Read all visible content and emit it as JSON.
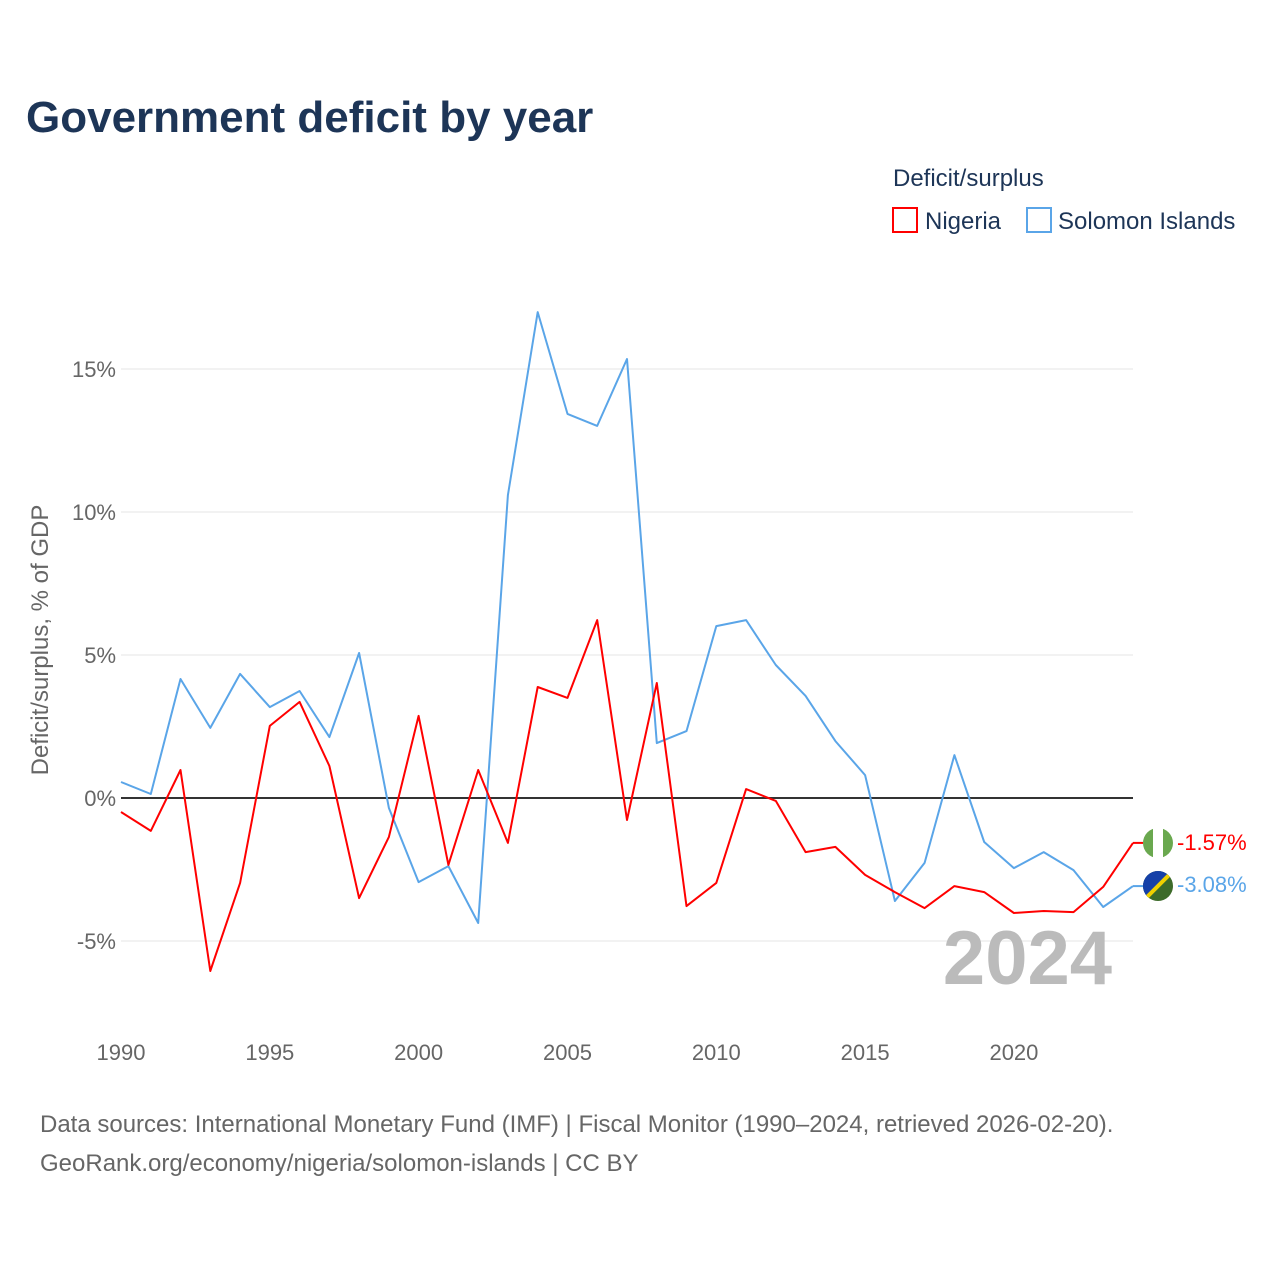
{
  "chart_data": {
    "type": "line",
    "title": "Government deficit by year",
    "ylabel": "Deficit/surplus, % of GDP",
    "xlabel": "",
    "ylim": [
      -8,
      17.5
    ],
    "xlim": [
      1990,
      2024
    ],
    "x_ticks": [
      "1990",
      "1995",
      "2000",
      "2005",
      "2010",
      "2015",
      "2020"
    ],
    "y_ticks": [
      {
        "v": -5,
        "label": "-5%"
      },
      {
        "v": 0,
        "label": "0%"
      },
      {
        "v": 5,
        "label": "5%"
      },
      {
        "v": 10,
        "label": "10%"
      },
      {
        "v": 15,
        "label": "15%"
      }
    ],
    "legend_title": "Deficit/surplus",
    "legend_position": "top-right",
    "year_label": "2024",
    "x": [
      1990,
      1991,
      1992,
      1993,
      1994,
      1995,
      1996,
      1997,
      1998,
      1999,
      2000,
      2001,
      2002,
      2003,
      2004,
      2005,
      2006,
      2007,
      2008,
      2009,
      2010,
      2011,
      2012,
      2013,
      2014,
      2015,
      2016,
      2017,
      2018,
      2019,
      2020,
      2021,
      2022,
      2023,
      2024
    ],
    "series": [
      {
        "name": "Nigeria",
        "color": "#ff0000",
        "end_label": "-1.57%",
        "values": [
          -0.49,
          -1.15,
          0.98,
          -6.05,
          -2.97,
          2.52,
          3.36,
          1.12,
          -3.5,
          -1.36,
          2.87,
          -2.34,
          0.98,
          -1.57,
          3.88,
          3.5,
          6.22,
          -0.77,
          4.02,
          -3.78,
          -2.97,
          0.31,
          -0.1,
          -1.89,
          -1.71,
          -2.69,
          -3.29,
          -3.85,
          -3.08,
          -3.29,
          -4.02,
          -3.95,
          -3.99,
          -3.11,
          -1.57
        ]
      },
      {
        "name": "Solomon Islands",
        "color": "#5aa5e8",
        "end_label": "-3.08%",
        "values": [
          0.56,
          0.14,
          4.16,
          2.45,
          4.34,
          3.18,
          3.74,
          2.13,
          5.07,
          -0.35,
          -2.94,
          -2.38,
          -4.37,
          10.59,
          16.99,
          13.43,
          13.01,
          15.35,
          1.92,
          2.34,
          6.01,
          6.22,
          4.65,
          3.57,
          1.99,
          0.8,
          -3.6,
          -2.27,
          1.5,
          -1.54,
          -2.45,
          -1.89,
          -2.52,
          -3.81,
          -3.08
        ]
      }
    ]
  },
  "footer": {
    "line1": "Data sources: International Monetary Fund (IMF) | Fiscal Monitor (1990–2024, retrieved 2026-02-20).",
    "line2": "GeoRank.org/economy/nigeria/solomon-islands | CC BY"
  }
}
